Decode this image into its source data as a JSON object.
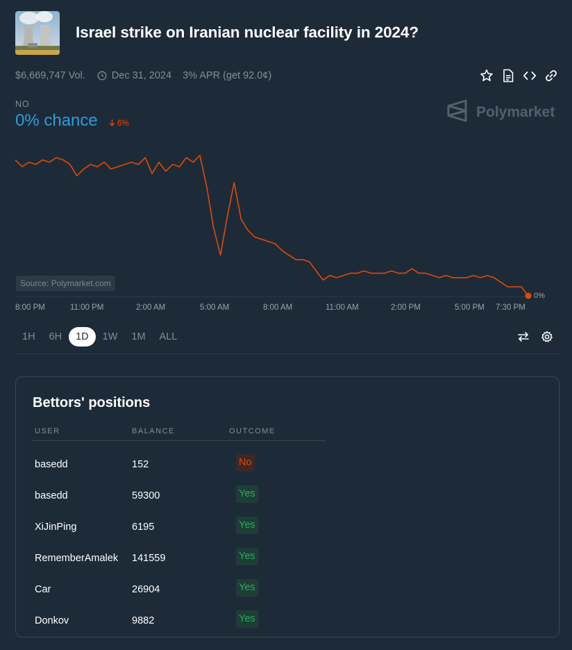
{
  "market": {
    "title": "Israel strike on Iranian nuclear facility in 2024?",
    "volume": "$6,669,747 Vol.",
    "end_date": "Dec 31, 2024",
    "apr": "3% APR (get 92.0¢)"
  },
  "outcome": {
    "label": "NO",
    "chance": "0% chance",
    "change": "6%"
  },
  "brand": {
    "name": "Polymarket"
  },
  "chart": {
    "source": "Source: Polymarket.com",
    "end_value_label": "0%",
    "line_color": "#e64800",
    "x_ticks": [
      "8:00 PM",
      "11:00 PM",
      "2:00 AM",
      "5:00 AM",
      "8:00 AM",
      "11:00 AM",
      "2:00 PM",
      "5:00 PM",
      "7:30 PM"
    ]
  },
  "chart_data": {
    "type": "line",
    "x_ticks": [
      "8:00 PM",
      "11:00 PM",
      "2:00 AM",
      "5:00 AM",
      "8:00 AM",
      "11:00 AM",
      "2:00 PM",
      "5:00 PM",
      "7:30 PM"
    ],
    "series": [
      {
        "values": [
          6.0,
          5.7,
          5.9,
          5.8,
          6.0,
          5.9,
          6.1,
          6.0,
          5.8,
          5.3,
          5.6,
          5.8,
          5.7,
          5.9,
          5.6,
          5.7,
          5.8,
          5.9,
          5.8,
          6.1,
          5.4,
          5.9,
          5.5,
          5.8,
          5.7,
          6.1,
          5.9,
          6.2,
          4.8,
          3.0,
          1.8,
          3.5,
          5.0,
          3.4,
          2.9,
          2.6,
          2.5,
          2.4,
          2.3,
          2.0,
          1.8,
          1.6,
          1.6,
          1.5,
          1.1,
          0.7,
          0.9,
          0.8,
          0.9,
          1.0,
          1.0,
          1.1,
          1.0,
          1.0,
          1.0,
          1.1,
          1.0,
          1.0,
          1.2,
          1.0,
          1.0,
          0.9,
          0.8,
          0.9,
          0.8,
          0.8,
          0.8,
          0.9,
          0.8,
          0.9,
          0.8,
          0.6,
          0.4,
          0.4,
          0.4,
          0.0
        ]
      }
    ],
    "ylim": [
      0,
      6.5
    ],
    "grid": false
  },
  "ranges": [
    "1H",
    "6H",
    "1D",
    "1W",
    "1M",
    "ALL"
  ],
  "active_range": "1D",
  "positions": {
    "title": "Bettors' positions",
    "headers": [
      "USER",
      "BALANCE",
      "OUTCOME"
    ],
    "rows": [
      {
        "user": "basedd",
        "balance": "152",
        "outcome": "No"
      },
      {
        "user": "basedd",
        "balance": "59300",
        "outcome": "Yes"
      },
      {
        "user": "XiJinPing",
        "balance": "6195",
        "outcome": "Yes"
      },
      {
        "user": "RememberAmalek",
        "balance": "141559",
        "outcome": "Yes"
      },
      {
        "user": "Car",
        "balance": "26904",
        "outcome": "Yes"
      },
      {
        "user": "Donkov",
        "balance": "9882",
        "outcome": "Yes"
      }
    ]
  },
  "colors": {
    "background": "#1d2b39",
    "accent_blue": "#2d9cdb",
    "no_red": "#e64800",
    "yes_green": "#27ae60"
  },
  "icons": {
    "actions": [
      "star-icon",
      "document-icon",
      "code-icon",
      "link-icon"
    ],
    "tools": [
      "swap-icon",
      "gear-icon"
    ]
  }
}
